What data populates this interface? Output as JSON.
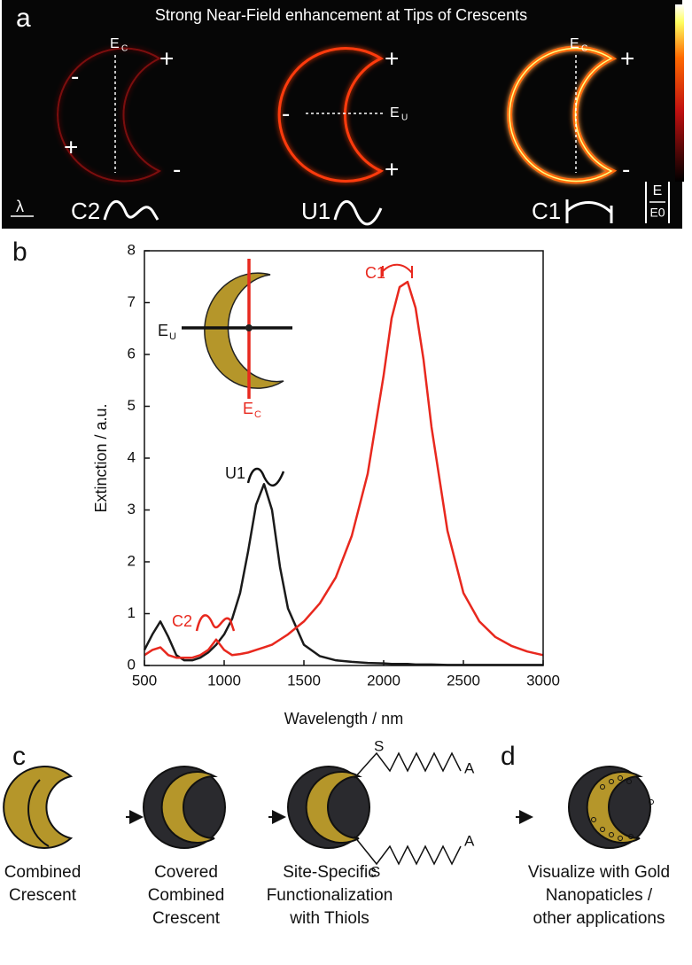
{
  "panel_a": {
    "label": "a",
    "title": "Strong Near-Field enhancement at Tips of Crescents",
    "field": "E",
    "sub_c": "C",
    "sub_u": "U",
    "plus": "+",
    "minus": "-",
    "modes": [
      "C2",
      "U1",
      "C1"
    ],
    "wavelength": "λ",
    "colorbar_num": "E",
    "colorbar_den": "E0"
  },
  "chart_data": {
    "type": "line",
    "label": "b",
    "x_label": "Wavelength / nm",
    "y_label": "Extinction / a.u.",
    "x": [
      500,
      550,
      600,
      650,
      700,
      750,
      800,
      850,
      900,
      950,
      1000,
      1050,
      1100,
      1150,
      1200,
      1250,
      1300,
      1350,
      1400,
      1500,
      1600,
      1700,
      1800,
      1900,
      2000,
      2050,
      2100,
      2150,
      2200,
      2250,
      2300,
      2400,
      2500,
      2600,
      2700,
      2800,
      2900,
      3000
    ],
    "series": [
      {
        "color": "#1a1a1a",
        "values": [
          0.3,
          0.6,
          0.85,
          0.55,
          0.2,
          0.1,
          0.1,
          0.15,
          0.25,
          0.4,
          0.6,
          0.9,
          1.4,
          2.2,
          3.1,
          3.5,
          3.0,
          1.9,
          1.1,
          0.4,
          0.18,
          0.1,
          0.07,
          0.05,
          0.04,
          0.03,
          0.03,
          0.03,
          0.02,
          0.02,
          0.02,
          0.01,
          0.01,
          0.01,
          0.01,
          0.01,
          0.01,
          0.01
        ]
      },
      {
        "color": "#e8281e",
        "values": [
          0.2,
          0.3,
          0.35,
          0.2,
          0.15,
          0.15,
          0.15,
          0.2,
          0.3,
          0.5,
          0.3,
          0.2,
          0.22,
          0.25,
          0.3,
          0.35,
          0.4,
          0.5,
          0.6,
          0.85,
          1.2,
          1.7,
          2.5,
          3.7,
          5.6,
          6.7,
          7.3,
          7.4,
          6.9,
          5.9,
          4.6,
          2.6,
          1.4,
          0.85,
          0.55,
          0.38,
          0.27,
          0.2
        ]
      }
    ],
    "xlim": [
      500,
      3000
    ],
    "xticks": [
      500,
      1000,
      1500,
      2000,
      2500,
      3000
    ],
    "ylim": [
      0,
      8
    ],
    "yticks": [
      0,
      1,
      2,
      3,
      4,
      5,
      6,
      7,
      8
    ],
    "annotations": [
      "C1",
      "U1",
      "C2"
    ],
    "inset_field": "E",
    "inset_sub_u": "U",
    "inset_sub_c": "C"
  },
  "panel_c": {
    "label_c": "c",
    "label_d": "d",
    "thiol_s": "S",
    "thiol_a": "A",
    "captions": [
      [
        "Combined",
        "Crescent"
      ],
      [
        "Covered",
        "Combined",
        "Crescent"
      ],
      [
        "Site-Specific",
        "Functionalization",
        "with Thiols"
      ],
      [
        "Visualize with Gold",
        "Nanopaticles /",
        "other applications"
      ]
    ]
  }
}
